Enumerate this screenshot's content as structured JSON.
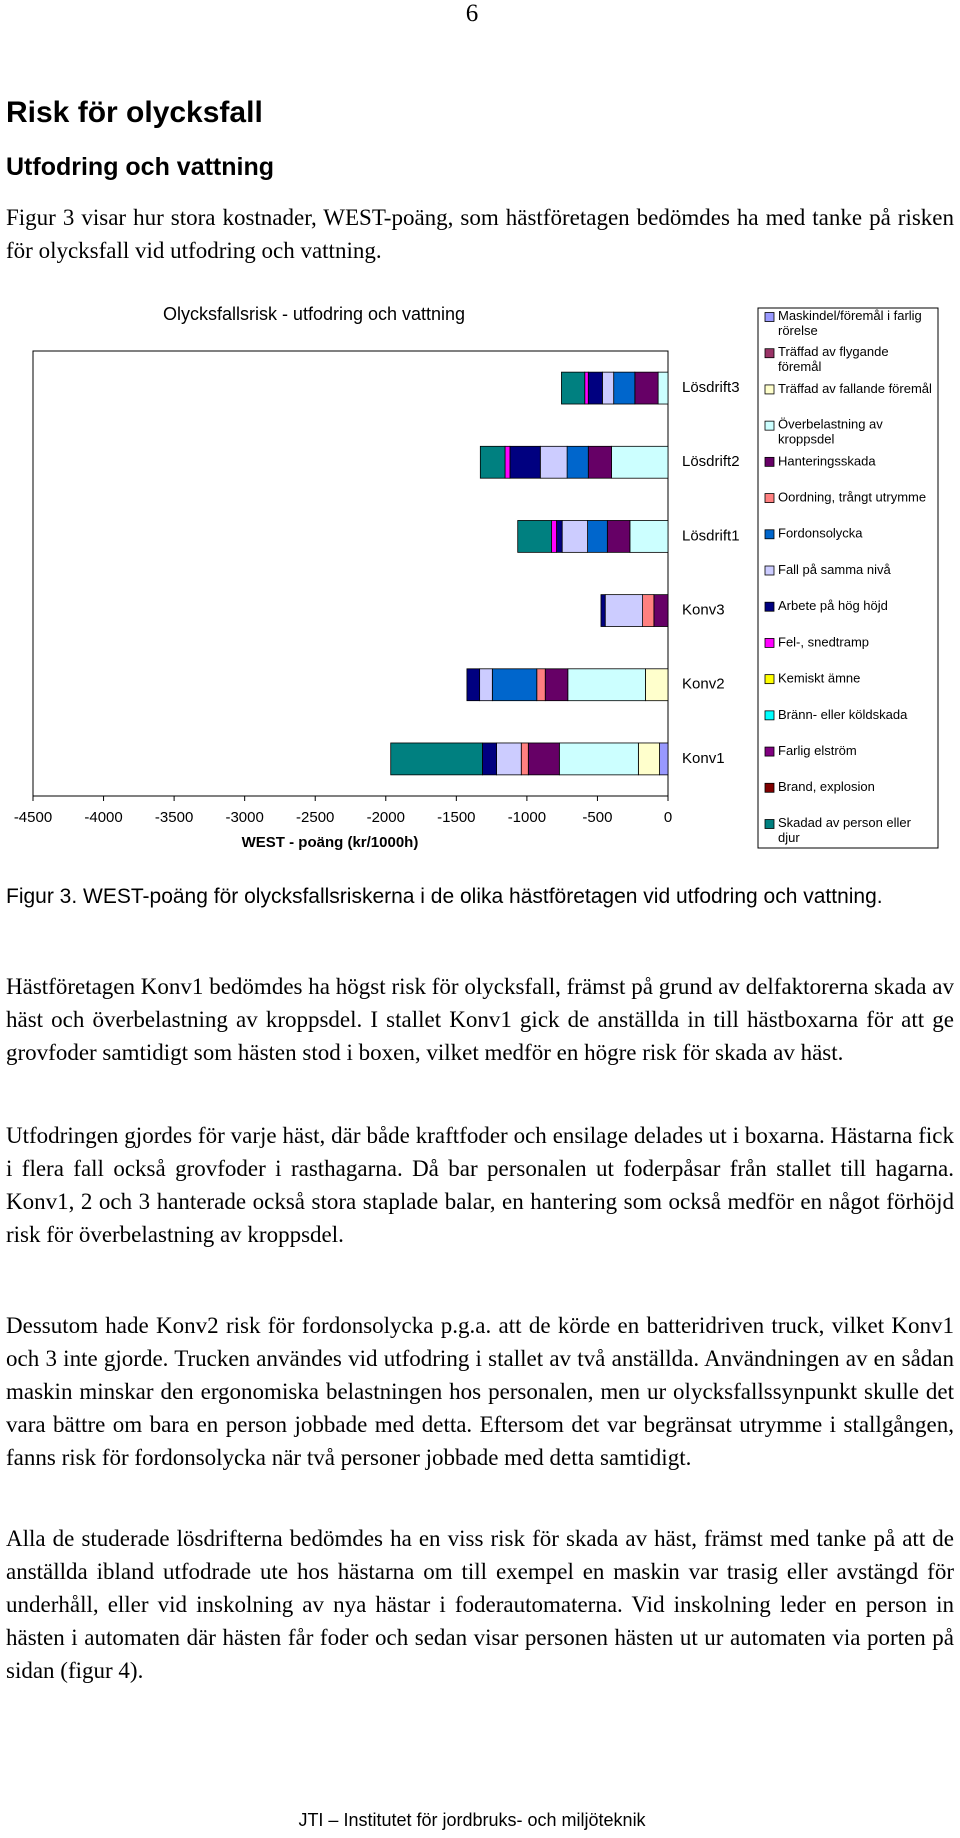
{
  "page_number": "6",
  "heading": "Risk för olycksfall",
  "subheading": "Utfodring och vattning",
  "paragraphs": [
    "Figur 3 visar hur stora kostnader, WEST-poäng, som hästföretagen bedömdes ha med tanke på risken för olycksfall vid utfodring och vattning.",
    "Hästföretagen Konv1 bedömdes ha högst risk för olycksfall, främst på grund av delfaktorerna skada av häst och överbelastning av kroppsdel. I stallet Konv1 gick de anställda in till hästboxarna för att ge grovfoder samtidigt som hästen stod i boxen, vilket medför en högre risk för skada av häst.",
    "Utfodringen gjordes för varje häst, där både kraftfoder och ensilage delades ut i boxarna. Hästarna fick i flera fall också grovfoder i rasthagarna. Då bar personalen ut foderpåsar från stallet till hagarna. Konv1, 2 och 3 hanterade också stora staplade balar, en hantering som också medför en något förhöjd risk för överbelastning av kroppsdel.",
    "Dessutom hade Konv2 risk för fordonsolycka p.g.a. att de körde en batteridriven truck, vilket Konv1 och 3 inte gjorde. Trucken användes vid utfodring i stallet av två anställda. Användningen av en sådan maskin minskar den ergonomiska belastningen hos personalen, men ur olycksfallssynpunkt skulle det vara bättre om bara en person jobbade med detta. Eftersom det var begränsat utrymme i stallgången, fanns risk för fordonsolycka när två personer jobbade med detta samtidigt.",
    "Alla de studerade lösdrifterna bedömdes ha en viss risk för skada av häst, främst med tanke på att de anställda ibland utfodrade ute hos hästarna om till exempel en maskin var trasig eller avstängd för underhåll, eller vid inskolning av nya hästar i foderautomaterna. Vid inskolning leder en person in hästen i automaten där hästen får foder och sedan visar personen hästen ut ur automaten via porten på sidan (figur 4)."
  ],
  "caption": "Figur 3. WEST-poäng för olycksfallsriskerna i de olika hästföretagen vid utfodring och vattning.",
  "footer": "JTI – Institutet för jordbruks- och miljöteknik",
  "chart_data": {
    "type": "bar",
    "orientation": "horizontal",
    "stacked": true,
    "title": "Olycksfallsrisk - utfodring och vattning",
    "xlabel": "WEST - poäng (kr/1000h)",
    "categories": [
      "Lösdrift3",
      "Lösdrift2",
      "Lösdrift1",
      "Konv3",
      "Konv2",
      "Konv1"
    ],
    "xlim": [
      -4500,
      0
    ],
    "xticks": [
      -4500,
      -4000,
      -3500,
      -3000,
      -2500,
      -2000,
      -1500,
      -1000,
      -500,
      0
    ],
    "grid": false,
    "legend": "right",
    "series": [
      {
        "name": "Maskindel/föremål i farlig rörelse",
        "color": "#9999ff",
        "values": [
          0,
          0,
          0,
          0,
          0,
          -60
        ]
      },
      {
        "name": "Träffad av flygande föremål",
        "color": "#993366",
        "values": [
          0,
          0,
          0,
          0,
          0,
          0
        ]
      },
      {
        "name": "Träffad av fallande föremål",
        "color": "#ffffcc",
        "values": [
          0,
          0,
          0,
          0,
          -160,
          -150
        ]
      },
      {
        "name": "Överbelastning av kroppsdel",
        "color": "#ccffff",
        "values": [
          -70,
          -400,
          -270,
          0,
          -550,
          -560
        ]
      },
      {
        "name": "Hanteringsskada",
        "color": "#660066",
        "values": [
          -165,
          -165,
          -160,
          -100,
          -160,
          -220
        ]
      },
      {
        "name": "Oordning, trångt utrymme",
        "color": "#ff8080",
        "values": [
          0,
          0,
          0,
          -80,
          -60,
          -50
        ]
      },
      {
        "name": "Fordonsolycka",
        "color": "#0066cc",
        "values": [
          -150,
          -150,
          -140,
          0,
          -315,
          0
        ]
      },
      {
        "name": "Fall på samma nivå",
        "color": "#ccccff",
        "values": [
          -80,
          -190,
          -180,
          -265,
          -90,
          -175
        ]
      },
      {
        "name": "Arbete på hög höjd",
        "color": "#000080",
        "values": [
          -100,
          -215,
          -40,
          -30,
          -90,
          -100
        ]
      },
      {
        "name": "Fel-, snedtramp",
        "color": "#ff00ff",
        "values": [
          -25,
          -35,
          -35,
          0,
          0,
          0
        ]
      },
      {
        "name": "Kemiskt ämne",
        "color": "#ffff00",
        "values": [
          0,
          0,
          0,
          0,
          0,
          0
        ]
      },
      {
        "name": "Bränn- eller köldskada",
        "color": "#00ffff",
        "values": [
          0,
          0,
          0,
          0,
          0,
          0
        ]
      },
      {
        "name": "Farlig elström",
        "color": "#800080",
        "values": [
          0,
          0,
          0,
          0,
          0,
          0
        ]
      },
      {
        "name": "Brand, explosion",
        "color": "#800000",
        "values": [
          0,
          0,
          0,
          0,
          0,
          0
        ]
      },
      {
        "name": "Skadad av person eller djur",
        "color": "#008080",
        "values": [
          -165,
          -175,
          -240,
          0,
          0,
          -650
        ]
      }
    ]
  }
}
